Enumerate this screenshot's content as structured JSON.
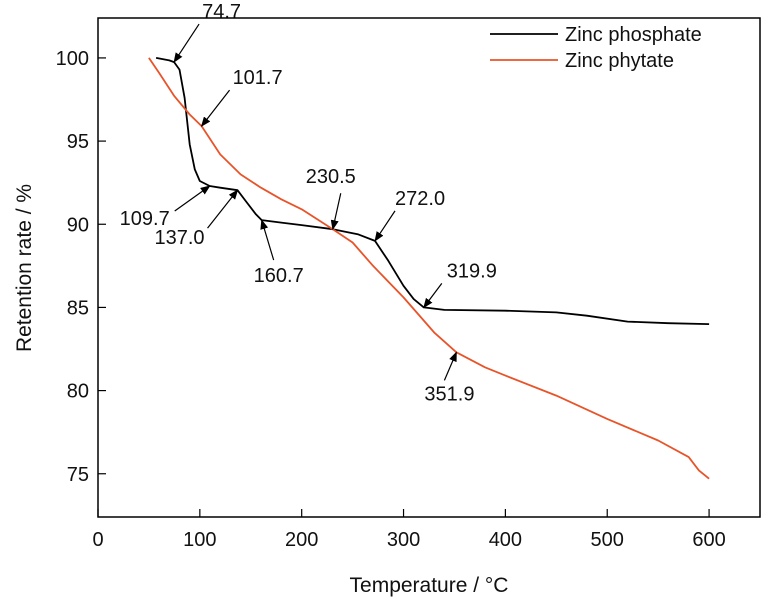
{
  "chart_data": {
    "type": "line",
    "title": "",
    "xlabel": "Temperature / °C",
    "ylabel": "Retention rate / %",
    "xlim": [
      0,
      650
    ],
    "ylim": [
      72.4,
      102.4
    ],
    "xticks": [
      0,
      100,
      200,
      300,
      400,
      500,
      600
    ],
    "yticks": [
      75,
      80,
      85,
      90,
      95,
      100
    ],
    "grid": false,
    "legend_position": "top-right",
    "series": [
      {
        "name": "Zinc phosphate",
        "color": "#000000",
        "points": [
          [
            57,
            100
          ],
          [
            70,
            99.85
          ],
          [
            74.7,
            99.75
          ],
          [
            80,
            99.3
          ],
          [
            85,
            97.6
          ],
          [
            90,
            94.8
          ],
          [
            95,
            93.3
          ],
          [
            100,
            92.6
          ],
          [
            109.7,
            92.3
          ],
          [
            120,
            92.2
          ],
          [
            137,
            92.05
          ],
          [
            145,
            91.4
          ],
          [
            155,
            90.6
          ],
          [
            160.7,
            90.25
          ],
          [
            180,
            90.1
          ],
          [
            200,
            89.95
          ],
          [
            230.5,
            89.7
          ],
          [
            255,
            89.4
          ],
          [
            272,
            89.0
          ],
          [
            285,
            87.8
          ],
          [
            300,
            86.3
          ],
          [
            310,
            85.5
          ],
          [
            319.9,
            85.0
          ],
          [
            340,
            84.85
          ],
          [
            400,
            84.8
          ],
          [
            450,
            84.7
          ],
          [
            480,
            84.5
          ],
          [
            520,
            84.15
          ],
          [
            560,
            84.05
          ],
          [
            600,
            84.0
          ]
        ]
      },
      {
        "name": "Zinc phytate",
        "color": "#e8542a",
        "points": [
          [
            50,
            100
          ],
          [
            60,
            99.1
          ],
          [
            75,
            97.7
          ],
          [
            90,
            96.6
          ],
          [
            101.7,
            95.9
          ],
          [
            120,
            94.2
          ],
          [
            140,
            93.0
          ],
          [
            160,
            92.2
          ],
          [
            180,
            91.5
          ],
          [
            200,
            90.9
          ],
          [
            230.5,
            89.7
          ],
          [
            250,
            88.9
          ],
          [
            270,
            87.5
          ],
          [
            300,
            85.6
          ],
          [
            330,
            83.5
          ],
          [
            351.9,
            82.3
          ],
          [
            380,
            81.4
          ],
          [
            400,
            80.9
          ],
          [
            450,
            79.7
          ],
          [
            500,
            78.3
          ],
          [
            550,
            77.0
          ],
          [
            580,
            76.0
          ],
          [
            590,
            75.2
          ],
          [
            600,
            74.7
          ]
        ]
      }
    ],
    "annotations": [
      {
        "text": "74.7",
        "x": 74.7,
        "y": 99.75
      },
      {
        "text": "101.7",
        "x": 101.7,
        "y": 95.9
      },
      {
        "text": "109.7",
        "x": 109.7,
        "y": 92.3
      },
      {
        "text": "137.0",
        "x": 137.0,
        "y": 92.05
      },
      {
        "text": "160.7",
        "x": 160.7,
        "y": 90.25
      },
      {
        "text": "230.5",
        "x": 230.5,
        "y": 89.7
      },
      {
        "text": "272.0",
        "x": 272.0,
        "y": 89.0
      },
      {
        "text": "319.9",
        "x": 319.9,
        "y": 85.0
      },
      {
        "text": "351.9",
        "x": 351.9,
        "y": 82.3
      }
    ]
  }
}
